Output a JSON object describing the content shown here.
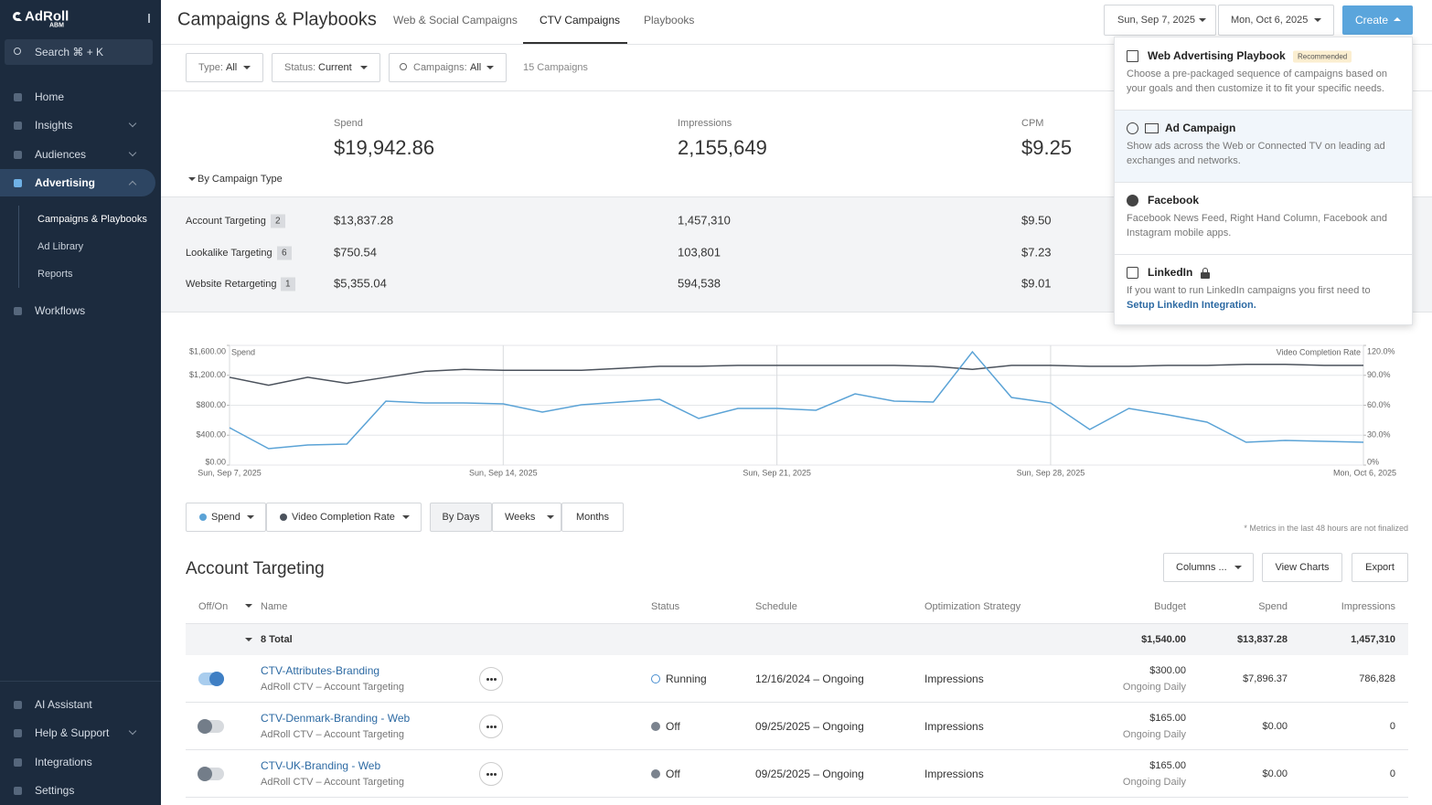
{
  "sidebar": {
    "brand": "AdRoll",
    "brand_sub": "ABM",
    "search": "Search ⌘ + K",
    "nav": [
      {
        "label": "Home"
      },
      {
        "label": "Insights",
        "chevron": "down"
      },
      {
        "label": "Audiences",
        "chevron": "down"
      },
      {
        "label": "Advertising",
        "chevron": "up",
        "active": true
      }
    ],
    "subnav": [
      {
        "label": "Campaigns & Playbooks",
        "active": true
      },
      {
        "label": "Ad Library"
      },
      {
        "label": "Reports"
      }
    ],
    "nav_after": [
      {
        "label": "Workflows"
      }
    ],
    "bottom_nav": [
      {
        "label": "AI Assistant"
      },
      {
        "label": "Help & Support",
        "chevron": "down"
      },
      {
        "label": "Integrations"
      },
      {
        "label": "Settings"
      }
    ]
  },
  "header": {
    "title": "Campaigns & Playbooks",
    "tabs": [
      "Web & Social Campaigns",
      "CTV Campaigns",
      "Playbooks"
    ],
    "active_tab": 1,
    "date_start": "Sun, Sep 7, 2025",
    "date_end": "Mon, Oct 6, 2025",
    "create": "Create"
  },
  "filters": [
    {
      "label": "Type:",
      "value": "All"
    },
    {
      "label": "Status:",
      "value": "Current"
    },
    {
      "label": "Campaigns:",
      "value": "All"
    }
  ],
  "campaign_count": "15 Campaigns",
  "summary": {
    "metrics": [
      {
        "label": "Spend",
        "value": "$19,942.86"
      },
      {
        "label": "Impressions",
        "value": "2,155,649"
      },
      {
        "label": "CPM",
        "value": "$9.25"
      }
    ],
    "toggle": "By Campaign Type",
    "rows": [
      {
        "name": "Account Targeting",
        "count": "2",
        "values": [
          "$13,837.28",
          "1,457,310",
          "$9.50"
        ]
      },
      {
        "name": "Lookalike Targeting",
        "count": "6",
        "values": [
          "$750.54",
          "103,801",
          "$7.23"
        ]
      },
      {
        "name": "Website Retargeting",
        "count": "1",
        "values": [
          "$5,355.04",
          "594,538",
          "$9.01"
        ]
      }
    ]
  },
  "dropdown": [
    {
      "title": "Web Advertising Playbook",
      "badge": "Recommended",
      "desc": "Choose a pre-packaged sequence of campaigns based on your goals and then customize it to fit your specific needs."
    },
    {
      "title": "Ad Campaign",
      "desc": "Show ads across the Web or Connected TV on leading ad exchanges and networks.",
      "highlight": true
    },
    {
      "title": "Facebook",
      "desc": "Facebook News Feed, Right Hand Column, Facebook and Instagram mobile apps."
    },
    {
      "title": "LinkedIn",
      "locked": true,
      "desc": "If you want to run LinkedIn campaigns you first need to",
      "link": "Setup LinkedIn Integration."
    }
  ],
  "chart_data": {
    "type": "line",
    "categories": [
      "Sun, Sep 7, 2025",
      null,
      null,
      null,
      null,
      null,
      null,
      "Sun, Sep 14, 2025",
      null,
      null,
      null,
      null,
      null,
      null,
      "Sun, Sep 21, 2025",
      null,
      null,
      null,
      null,
      null,
      null,
      "Sun, Sep 28, 2025",
      null,
      null,
      null,
      null,
      null,
      null,
      null,
      "Mon, Oct 6, 2025"
    ],
    "series": [
      {
        "name": "Spend",
        "color": "#5ba3d6",
        "values": [
          500,
          220,
          269,
          281,
          855,
          830,
          830,
          818,
          708,
          806,
          843,
          879,
          623,
          757,
          757,
          733,
          952,
          855,
          843,
          1514,
          904,
          830,
          476,
          757,
          672,
          574,
          305,
          330,
          318,
          305
        ]
      },
      {
        "name": "Video Completion Rate",
        "color": "#4b525c",
        "axis": "y2",
        "values": [
          88,
          80,
          88,
          82,
          88,
          94,
          96,
          95,
          95,
          95,
          97,
          99,
          99,
          100,
          100,
          100,
          100,
          100,
          99,
          96,
          100,
          100,
          99,
          99,
          100,
          100,
          101,
          101,
          100,
          100
        ]
      }
    ],
    "ylim": [
      0,
      1600
    ],
    "yticks": [
      {
        "value": 0,
        "label": "$0.00"
      },
      {
        "value": 400,
        "label": "$400.00"
      },
      {
        "value": 800,
        "label": "$800.00"
      },
      {
        "value": 1200,
        "label": "$1,200.00"
      },
      {
        "value": 1600,
        "label": "$1,600.00"
      }
    ],
    "y2lim": [
      0,
      120
    ],
    "y2ticks": [
      {
        "value": 0,
        "label": "0%"
      },
      {
        "value": 30,
        "label": "30.0%"
      },
      {
        "value": 60,
        "label": "60.0%"
      },
      {
        "value": 90,
        "label": "90.0%"
      },
      {
        "value": 120,
        "label": "120.0%"
      }
    ],
    "grid": true
  },
  "controls": {
    "granularity": [
      "By Days",
      "Weeks",
      "Months"
    ],
    "active": 0,
    "note": "* Metrics in the last 48 hours are not finalized"
  },
  "table": {
    "title": "Account Targeting",
    "buttons": [
      "Columns ...",
      "View Charts",
      "Export"
    ],
    "columns": [
      "Off/On",
      "Name",
      "Status",
      "Schedule",
      "Optimization Strategy",
      "Budget",
      "Spend",
      "Impressions"
    ],
    "total": {
      "label": "8 Total",
      "budget": "$1,540.00",
      "spend": "$13,837.28",
      "impressions": "1,457,310"
    },
    "rows": [
      {
        "on": true,
        "name": "CTV-Attributes-Branding",
        "sub": "AdRoll CTV – Account Targeting",
        "status": "Running",
        "schedule": "12/16/2024 – Ongoing",
        "strategy": "Impressions",
        "budget": "$300.00",
        "budget_sub": "Ongoing Daily",
        "spend": "$7,896.37",
        "impressions": "786,828"
      },
      {
        "on": false,
        "name": "CTV-Denmark-Branding - Web",
        "sub": "AdRoll CTV – Account Targeting",
        "status": "Off",
        "schedule": "09/25/2025 – Ongoing",
        "strategy": "Impressions",
        "budget": "$165.00",
        "budget_sub": "Ongoing Daily",
        "spend": "$0.00",
        "impressions": "0"
      },
      {
        "on": false,
        "name": "CTV-UK-Branding - Web",
        "sub": "AdRoll CTV – Account Targeting",
        "status": "Off",
        "schedule": "09/25/2025 – Ongoing",
        "strategy": "Impressions",
        "budget": "$165.00",
        "budget_sub": "Ongoing Daily",
        "spend": "$0.00",
        "impressions": "0"
      }
    ]
  }
}
